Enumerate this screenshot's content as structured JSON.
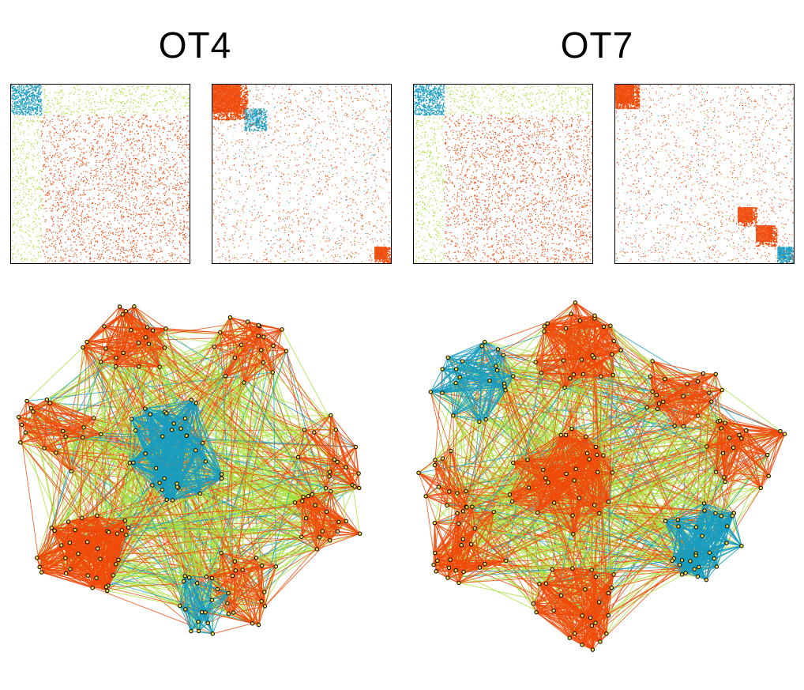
{
  "panels": [
    {
      "title": "OT4",
      "matrices": [
        {
          "pattern": "block-first-small"
        },
        {
          "pattern": "hierarchical-corner"
        }
      ],
      "network": {
        "pattern": "clustered-graph-a"
      }
    },
    {
      "title": "OT7",
      "matrices": [
        {
          "pattern": "block-first-small"
        },
        {
          "pattern": "diagonal-blocks"
        }
      ],
      "network": {
        "pattern": "clustered-graph-b"
      }
    }
  ],
  "colors": {
    "orange": "#f04a0a",
    "lime": "#a8e03a",
    "teal": "#1a9cbf",
    "node_fill": "#f4d84a",
    "node_stroke": "#000000"
  }
}
